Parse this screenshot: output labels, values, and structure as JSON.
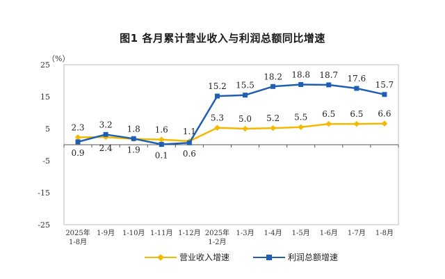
{
  "chart_data": {
    "type": "line",
    "title": "图1  各月累计营业收入与利润总额同比增速",
    "unit_label": "（%）",
    "categories": [
      [
        "2025年",
        "1-8月"
      ],
      [
        "1-9月"
      ],
      [
        "1-10月"
      ],
      [
        "1-11月"
      ],
      [
        "1-12月"
      ],
      [
        "2025年",
        "1-2月"
      ],
      [
        "1-3月"
      ],
      [
        "1-4月"
      ],
      [
        "1-5月"
      ],
      [
        "1-6月"
      ],
      [
        "1-7月"
      ],
      [
        "1-8月"
      ]
    ],
    "ylim": [
      -25,
      25
    ],
    "yticks": [
      25,
      15,
      5,
      -5,
      -15,
      -25
    ],
    "series": [
      {
        "name": "营业收入增速",
        "color": "#f5b800",
        "values": [
          2.3,
          2.4,
          1.8,
          1.6,
          1.1,
          5.3,
          5.0,
          5.2,
          5.5,
          6.5,
          6.5,
          6.6
        ],
        "labels": [
          "2.3",
          "2.4",
          "1.8",
          "1.6",
          "1.1",
          "5.3",
          "5.0",
          "5.2",
          "5.5",
          "6.5",
          "6.5",
          "6.6"
        ]
      },
      {
        "name": "利润总额增速",
        "color": "#1f5fb3",
        "values": [
          0.9,
          3.2,
          1.9,
          0.1,
          0.6,
          15.2,
          15.5,
          18.2,
          18.8,
          18.7,
          17.6,
          15.7
        ],
        "labels": [
          "0.9",
          "3.2",
          "1.9",
          "0.1",
          "0.6",
          "15.2",
          "15.5",
          "18.2",
          "18.8",
          "18.7",
          "17.6",
          "15.7"
        ]
      }
    ],
    "grid": false,
    "legend_position": "bottom"
  }
}
